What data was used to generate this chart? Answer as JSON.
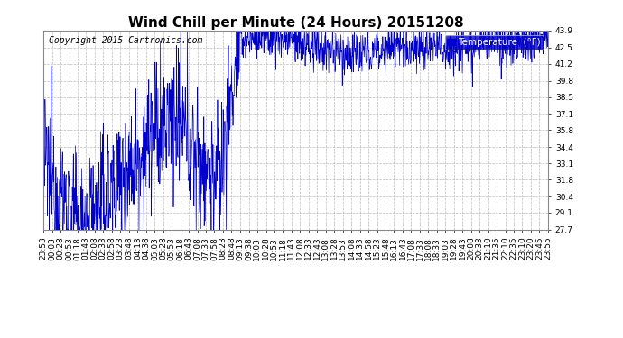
{
  "title": "Wind Chill per Minute (24 Hours) 20151208",
  "copyright": "Copyright 2015 Cartronics.com",
  "legend_label": "Temperature  (°F)",
  "line_color": "#0000cc",
  "background_color": "#ffffff",
  "grid_color": "#aaaaaa",
  "ylim": [
    27.7,
    43.9
  ],
  "yticks": [
    27.7,
    29.1,
    30.4,
    31.8,
    33.1,
    34.4,
    35.8,
    37.1,
    38.5,
    39.8,
    41.2,
    42.5,
    43.9
  ],
  "xtick_labels": [
    "23:53",
    "00:03",
    "00:28",
    "00:53",
    "01:18",
    "01:43",
    "02:08",
    "02:33",
    "02:58",
    "03:23",
    "03:48",
    "04:13",
    "04:38",
    "05:03",
    "05:28",
    "05:53",
    "06:18",
    "06:43",
    "07:08",
    "07:33",
    "07:58",
    "08:23",
    "08:48",
    "09:13",
    "09:38",
    "10:03",
    "10:28",
    "10:53",
    "11:18",
    "11:43",
    "12:08",
    "12:33",
    "12:43",
    "13:08",
    "13:28",
    "13:53",
    "14:08",
    "14:33",
    "14:58",
    "15:23",
    "15:48",
    "16:13",
    "16:43",
    "17:08",
    "17:33",
    "18:08",
    "18:33",
    "19:03",
    "19:28",
    "19:43",
    "20:08",
    "20:33",
    "21:10",
    "21:35",
    "22:10",
    "22:35",
    "23:10",
    "23:20",
    "23:45",
    "23:55"
  ],
  "title_fontsize": 11,
  "tick_fontsize": 6.5,
  "legend_fontsize": 7.5,
  "copyright_fontsize": 7
}
